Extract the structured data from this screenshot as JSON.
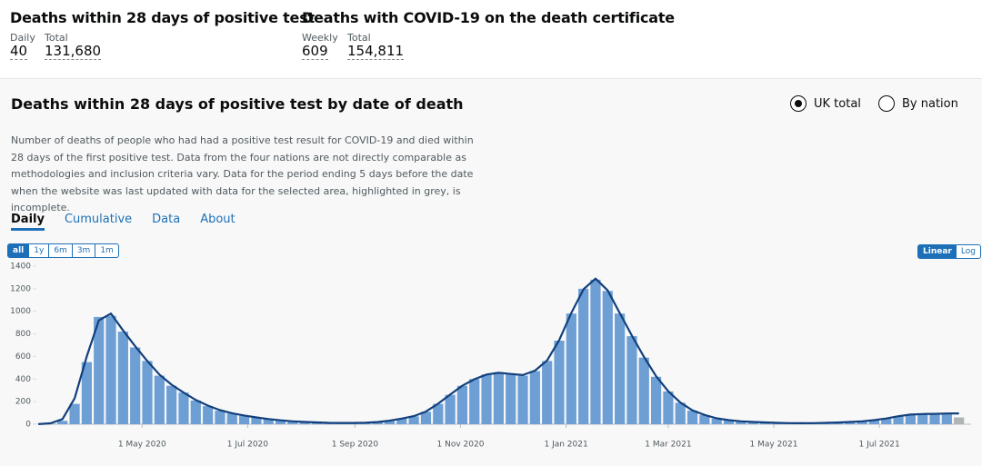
{
  "header": {
    "left": {
      "title": "Deaths within 28 days of positive test",
      "labels": [
        "Daily",
        "Total"
      ],
      "values": [
        "40",
        "131,680"
      ]
    },
    "right": {
      "title": "Deaths with COVID-19 on the death certificate",
      "labels": [
        "Weekly",
        "Total"
      ],
      "values": [
        "609",
        "154,811"
      ]
    }
  },
  "card": {
    "title": "Deaths within 28 days of positive test by date of death",
    "options": [
      "UK total",
      "By nation"
    ],
    "description": "Number of deaths of people who had had a positive test result for COVID-19 and died within 28 days of the first positive test. Data from the four nations are not directly comparable as methodologies and inclusion criteria vary. Data for the period ending 5 days before the date when the website was last updated with data for the selected area, highlighted in grey, is incomplete.",
    "tabs": [
      "Daily",
      "Cumulative",
      "Data",
      "About"
    ],
    "ranges": [
      "all",
      "1y",
      "6m",
      "3m",
      "1m"
    ],
    "scales": [
      "Linear",
      "Log"
    ]
  },
  "chart_data": {
    "type": "bar-line",
    "x": [
      "2020-03-02",
      "2020-03-09",
      "2020-03-16",
      "2020-03-23",
      "2020-03-30",
      "2020-04-06",
      "2020-04-13",
      "2020-04-20",
      "2020-04-27",
      "2020-05-04",
      "2020-05-11",
      "2020-05-18",
      "2020-05-25",
      "2020-06-01",
      "2020-06-08",
      "2020-06-15",
      "2020-06-22",
      "2020-06-29",
      "2020-07-06",
      "2020-07-13",
      "2020-07-20",
      "2020-07-27",
      "2020-08-03",
      "2020-08-10",
      "2020-08-17",
      "2020-08-24",
      "2020-08-31",
      "2020-09-07",
      "2020-09-14",
      "2020-09-21",
      "2020-09-28",
      "2020-10-05",
      "2020-10-12",
      "2020-10-19",
      "2020-10-26",
      "2020-11-02",
      "2020-11-09",
      "2020-11-16",
      "2020-11-23",
      "2020-11-30",
      "2020-12-07",
      "2020-12-14",
      "2020-12-21",
      "2020-12-28",
      "2021-01-04",
      "2021-01-11",
      "2021-01-18",
      "2021-01-25",
      "2021-02-01",
      "2021-02-08",
      "2021-02-15",
      "2021-02-22",
      "2021-03-01",
      "2021-03-08",
      "2021-03-15",
      "2021-03-22",
      "2021-03-29",
      "2021-04-05",
      "2021-04-12",
      "2021-04-19",
      "2021-04-26",
      "2021-05-03",
      "2021-05-10",
      "2021-05-17",
      "2021-05-24",
      "2021-05-31",
      "2021-06-07",
      "2021-06-14",
      "2021-06-21",
      "2021-06-28",
      "2021-07-05",
      "2021-07-12",
      "2021-07-19",
      "2021-07-26",
      "2021-08-02",
      "2021-08-09",
      "2021-08-16"
    ],
    "series": [
      {
        "name": "Daily deaths",
        "color": "#6e9fd4",
        "values": [
          1,
          5,
          30,
          180,
          550,
          950,
          960,
          820,
          680,
          560,
          430,
          340,
          280,
          210,
          160,
          120,
          95,
          75,
          60,
          45,
          35,
          25,
          20,
          15,
          12,
          10,
          10,
          12,
          18,
          30,
          50,
          70,
          110,
          180,
          260,
          340,
          400,
          440,
          460,
          440,
          430,
          470,
          560,
          740,
          980,
          1200,
          1280,
          1180,
          980,
          780,
          590,
          420,
          290,
          190,
          120,
          80,
          50,
          35,
          25,
          20,
          15,
          12,
          10,
          9,
          10,
          12,
          15,
          20,
          25,
          35,
          50,
          70,
          85,
          90,
          92,
          95,
          60
        ]
      },
      {
        "name": "Rolling average",
        "color": "#12407c",
        "values": [
          1,
          8,
          45,
          230,
          600,
          920,
          980,
          830,
          690,
          560,
          440,
          350,
          280,
          215,
          165,
          125,
          97,
          77,
          60,
          46,
          35,
          26,
          20,
          16,
          12,
          11,
          11,
          13,
          19,
          31,
          50,
          72,
          112,
          182,
          262,
          340,
          398,
          440,
          455,
          445,
          435,
          475,
          565,
          745,
          985,
          1195,
          1290,
          1185,
          985,
          785,
          595,
          425,
          292,
          192,
          122,
          82,
          52,
          36,
          26,
          20,
          16,
          12,
          10,
          9,
          10,
          12,
          15,
          20,
          26,
          36,
          51,
          71,
          85,
          90,
          92,
          95,
          96
        ]
      }
    ],
    "xlim": [
      "2020-03-03",
      "2021-08-23"
    ],
    "xticks": [
      {
        "value": "2020-05-01",
        "label": "1 May 2020"
      },
      {
        "value": "2020-07-01",
        "label": "1 Jul 2020"
      },
      {
        "value": "2020-09-01",
        "label": "1 Sep 2020"
      },
      {
        "value": "2020-11-01",
        "label": "1 Nov 2020"
      },
      {
        "value": "2021-01-01",
        "label": "1 Jan 2021"
      },
      {
        "value": "2021-03-01",
        "label": "1 Mar 2021"
      },
      {
        "value": "2021-05-01",
        "label": "1 May 2021"
      },
      {
        "value": "2021-07-01",
        "label": "1 Jul 2021"
      }
    ],
    "ylim": [
      0,
      1400
    ],
    "yticks": [
      0,
      200,
      400,
      600,
      800,
      1000,
      1200,
      1400
    ],
    "incomplete_color": "#b1b4b6"
  }
}
